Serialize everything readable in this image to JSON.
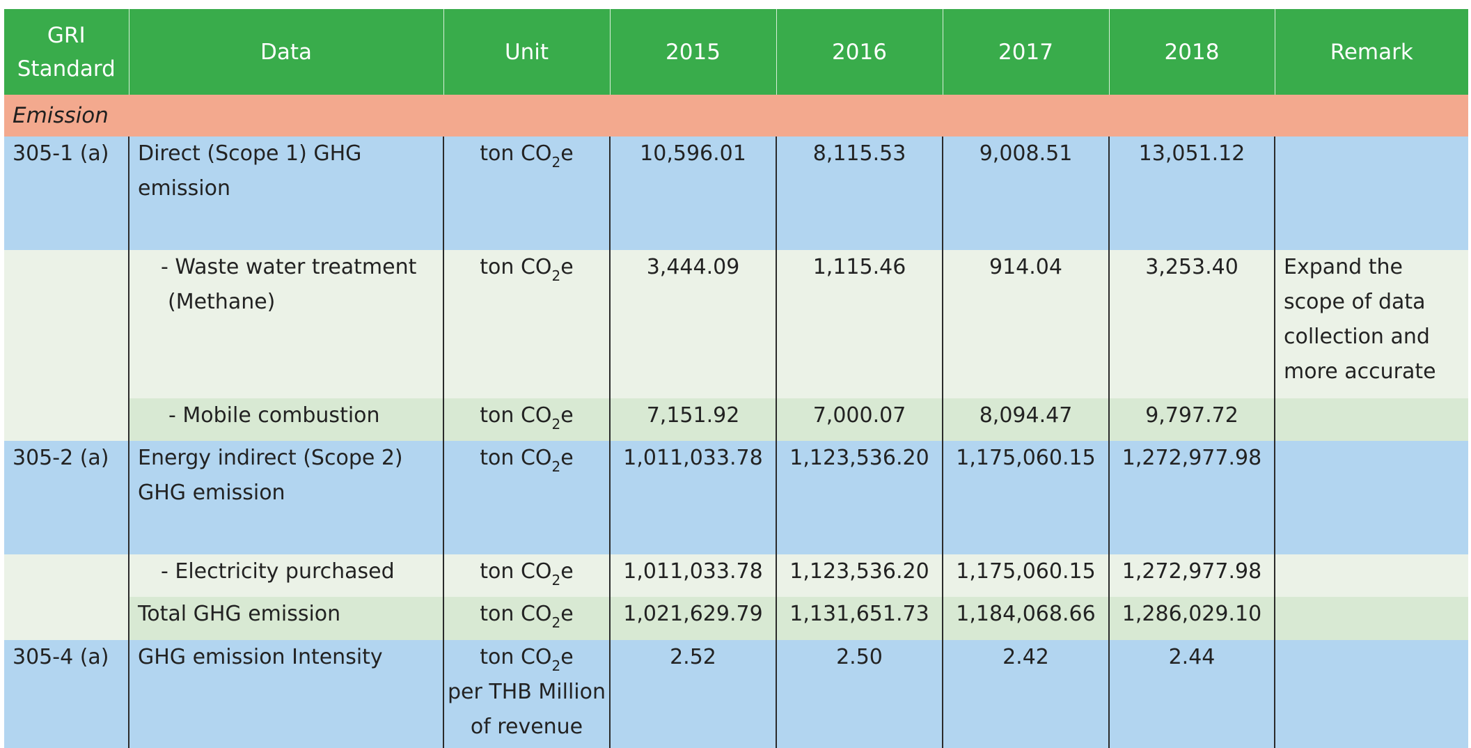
{
  "headers": {
    "gri": [
      "GRI",
      "Standard"
    ],
    "data": "Data",
    "unit": "Unit",
    "y2015": "2015",
    "y2016": "2016",
    "y2017": "2017",
    "y2018": "2018",
    "remark": "Remark"
  },
  "section": "Emission",
  "unit_parts": {
    "pre": "ton CO",
    "sub": "2",
    "post": "e"
  },
  "intensity_unit_tail": [
    "per THB Million",
    "of revenue"
  ],
  "rows": [
    {
      "gri": "305-1 (a)",
      "data": [
        "Direct (Scope 1) GHG",
        "emission"
      ],
      "v": [
        "10,596.01",
        "8,115.53",
        "9,008.51",
        "13,051.12"
      ],
      "remark": ""
    },
    {
      "gri": "",
      "data": [
        "- Waste water treatment",
        "(Methane)"
      ],
      "v": [
        "3,444.09",
        "1,115.46",
        "914.04",
        "3,253.40"
      ],
      "remark": [
        "Expand the",
        "scope of data",
        "collection and",
        "more accurate"
      ]
    },
    {
      "gri": "",
      "data": [
        "- Mobile combustion"
      ],
      "v": [
        "7,151.92",
        "7,000.07",
        "8,094.47",
        "9,797.72"
      ],
      "remark": ""
    },
    {
      "gri": "305-2 (a)",
      "data": [
        "Energy indirect (Scope 2)",
        "GHG emission"
      ],
      "v": [
        "1,011,033.78",
        "1,123,536.20",
        "1,175,060.15",
        "1,272,977.98"
      ],
      "remark": ""
    },
    {
      "gri": "",
      "data": [
        "- Electricity purchased"
      ],
      "v": [
        "1,011,033.78",
        "1,123,536.20",
        "1,175,060.15",
        "1,272,977.98"
      ],
      "remark": ""
    },
    {
      "gri": "",
      "data": [
        "Total GHG emission"
      ],
      "v": [
        "1,021,629.79",
        "1,131,651.73",
        "1,184,068.66",
        "1,286,029.10"
      ],
      "remark": ""
    },
    {
      "gri": "305-4 (a)",
      "data": [
        "GHG emission Intensity"
      ],
      "v": [
        "2.52",
        "2.50",
        "2.42",
        "2.44"
      ],
      "remark": ""
    }
  ]
}
